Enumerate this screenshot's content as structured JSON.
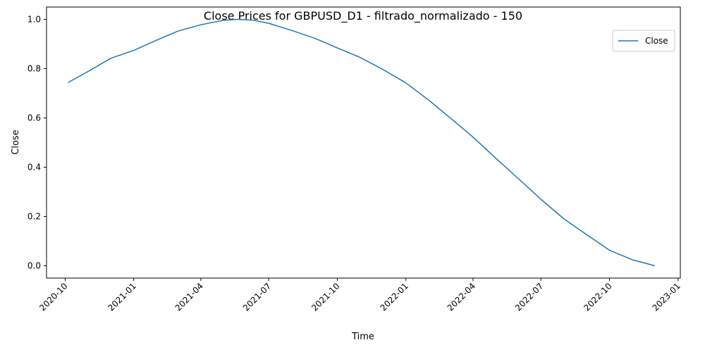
{
  "chart_data": {
    "type": "line",
    "title": "Close Prices for GBPUSD_D1 - filtrado_normalizado - 150",
    "xlabel": "Time",
    "ylabel": "Close",
    "xlim": [
      "2020-09-06",
      "2023-01-04"
    ],
    "ylim": [
      -0.05,
      1.05
    ],
    "x_ticks": [
      "2020-10",
      "2021-01",
      "2021-04",
      "2021-07",
      "2021-10",
      "2022-01",
      "2022-04",
      "2022-07",
      "2022-10",
      "2023-01"
    ],
    "y_ticks": [
      "0.0",
      "0.2",
      "0.4",
      "0.6",
      "0.8",
      "1.0"
    ],
    "grid": false,
    "legend_position": "top-right",
    "series": [
      {
        "name": "Close",
        "color": "#1f77b4",
        "points": [
          [
            "2020-10-05",
            0.744
          ],
          [
            "2020-11-01",
            0.789
          ],
          [
            "2020-12-01",
            0.842
          ],
          [
            "2021-01-01",
            0.874
          ],
          [
            "2021-02-01",
            0.916
          ],
          [
            "2021-03-01",
            0.952
          ],
          [
            "2021-04-01",
            0.978
          ],
          [
            "2021-05-01",
            0.996
          ],
          [
            "2021-05-20",
            1.0
          ],
          [
            "2021-06-10",
            0.997
          ],
          [
            "2021-07-01",
            0.984
          ],
          [
            "2021-08-01",
            0.955
          ],
          [
            "2021-09-01",
            0.923
          ],
          [
            "2021-10-01",
            0.884
          ],
          [
            "2021-11-01",
            0.845
          ],
          [
            "2021-12-01",
            0.797
          ],
          [
            "2022-01-01",
            0.742
          ],
          [
            "2022-02-01",
            0.671
          ],
          [
            "2022-03-01",
            0.601
          ],
          [
            "2022-04-01",
            0.522
          ],
          [
            "2022-05-01",
            0.438
          ],
          [
            "2022-06-01",
            0.353
          ],
          [
            "2022-07-01",
            0.27
          ],
          [
            "2022-08-01",
            0.19
          ],
          [
            "2022-09-01",
            0.125
          ],
          [
            "2022-10-01",
            0.063
          ],
          [
            "2022-11-01",
            0.024
          ],
          [
            "2022-12-01",
            0.0
          ]
        ]
      }
    ]
  }
}
